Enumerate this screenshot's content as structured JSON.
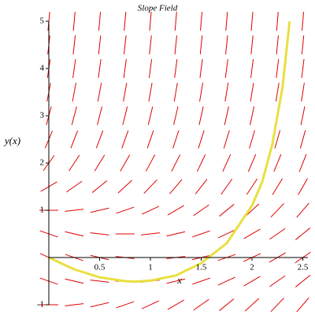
{
  "chart_data": {
    "type": "slope_field",
    "title": "Slope Field",
    "x_label": "x",
    "y_label": "y(x)",
    "xlim": [
      0,
      2.55
    ],
    "ylim": [
      -1,
      5
    ],
    "xticks": [
      0.5,
      1,
      1.5,
      2,
      2.5
    ],
    "yticks": [
      -1,
      1,
      2,
      3,
      4,
      5
    ],
    "field_color": "#e00000",
    "x_grid": [
      0,
      0.25,
      0.5,
      0.75,
      1,
      1.25,
      1.5,
      1.75,
      2,
      2.25,
      2.5
    ],
    "y_grid": [
      -1,
      -0.5,
      0,
      0.5,
      1,
      1.5,
      2,
      2.5,
      3,
      3.5,
      4,
      4.5,
      5
    ],
    "slopes": [
      [
        0,
        0.25,
        0.5,
        0.75,
        1,
        1.25,
        1.5,
        1.75,
        2,
        2.25,
        2.5
      ],
      [
        -0.75,
        -0.5,
        -0.25,
        0,
        0.25,
        0.5,
        0.75,
        1,
        1.25,
        1.5,
        1.75
      ],
      [
        -1,
        -0.75,
        -0.5,
        -0.25,
        0,
        0.25,
        0.5,
        0.75,
        1,
        1.25,
        1.5
      ],
      [
        -0.75,
        -0.5,
        -0.25,
        0,
        0.25,
        0.5,
        0.75,
        1,
        1.25,
        1.5,
        1.75
      ],
      [
        0,
        0.25,
        0.5,
        0.75,
        1,
        1.25,
        1.5,
        1.75,
        2,
        2.25,
        2.5
      ],
      [
        1.25,
        1.5,
        1.75,
        2,
        2.25,
        2.5,
        2.75,
        3,
        3.25,
        3.5,
        3.75
      ],
      [
        3,
        3.25,
        3.5,
        3.75,
        4,
        4.25,
        4.5,
        4.75,
        5,
        5.25,
        5.5
      ],
      [
        5.25,
        5.5,
        5.75,
        6,
        6.25,
        6.5,
        6.75,
        7,
        7.25,
        7.5,
        7.75
      ],
      [
        8,
        8.25,
        8.5,
        8.75,
        9,
        9.25,
        9.5,
        9.75,
        10,
        10.25,
        10.5
      ],
      [
        11.25,
        11.5,
        11.75,
        12,
        12.25,
        12.5,
        12.75,
        13,
        13.25,
        13.5,
        13.75
      ],
      [
        15,
        15.25,
        15.5,
        15.75,
        16,
        16.25,
        16.5,
        16.75,
        17,
        17.25,
        17.5
      ],
      [
        19.25,
        19.5,
        19.75,
        20,
        20.25,
        20.5,
        20.75,
        21,
        21.25,
        21.5,
        21.75
      ],
      [
        24,
        24.25,
        24.5,
        24.75,
        25,
        25.25,
        25.5,
        25.75,
        26,
        26.25,
        26.5
      ]
    ],
    "solution": {
      "color": "#e8e040",
      "x": [
        0,
        0.25,
        0.5,
        0.75,
        0.85,
        1,
        1.25,
        1.5,
        1.75,
        2,
        2.1,
        2.2,
        2.3,
        2.37
      ],
      "y": [
        0,
        -0.25,
        -0.42,
        -0.5,
        -0.51,
        -0.49,
        -0.38,
        -0.12,
        0.3,
        1.1,
        1.6,
        2.4,
        3.6,
        5
      ]
    }
  }
}
